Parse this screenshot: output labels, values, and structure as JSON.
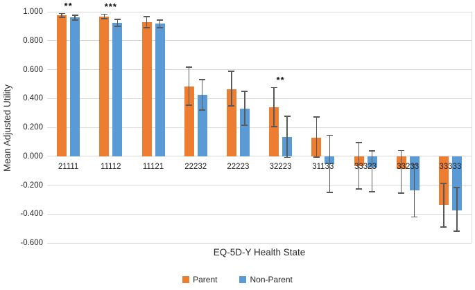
{
  "chart_data": {
    "type": "bar",
    "title": "",
    "xlabel": "EQ-5D-Y Health State",
    "ylabel": "Mean Adjusted Utility",
    "categories": [
      "21111",
      "11112",
      "11121",
      "22232",
      "22223",
      "32223",
      "31133",
      "33323",
      "33233",
      "33333"
    ],
    "series": [
      {
        "name": "Parent",
        "color": "#ED7D31",
        "values": [
          0.975,
          0.967,
          0.93,
          0.485,
          0.465,
          0.34,
          0.13,
          -0.068,
          -0.087,
          -0.335
        ],
        "ci_low": [
          0.963,
          0.951,
          0.889,
          0.355,
          0.349,
          0.205,
          -0.005,
          -0.226,
          -0.255,
          -0.49
        ],
        "ci_high": [
          0.988,
          0.983,
          0.966,
          0.615,
          0.587,
          0.475,
          0.27,
          0.094,
          0.04,
          -0.187
        ]
      },
      {
        "name": "Non-Parent",
        "color": "#5B9BD5",
        "values": [
          0.96,
          0.924,
          0.918,
          0.425,
          0.33,
          0.135,
          -0.055,
          -0.079,
          -0.235,
          -0.375
        ],
        "ci_low": [
          0.944,
          0.898,
          0.89,
          0.32,
          0.213,
          -0.008,
          -0.252,
          -0.244,
          -0.42,
          -0.52
        ],
        "ci_high": [
          0.976,
          0.946,
          0.944,
          0.53,
          0.451,
          0.277,
          0.145,
          0.038,
          -0.056,
          -0.216
        ]
      }
    ],
    "significance": [
      {
        "category": "21111",
        "label": "**"
      },
      {
        "category": "11112",
        "label": "***"
      },
      {
        "category": "32223",
        "label": "**"
      }
    ],
    "y_ticks": [
      1.0,
      0.8,
      0.6,
      0.4,
      0.2,
      0.0,
      -0.2,
      -0.4,
      -0.6
    ],
    "y_tick_labels": [
      "1.000",
      "0.800",
      "0.600",
      "0.400",
      "0.200",
      "0.000",
      "-0.200",
      "-0.400",
      "-0.600"
    ],
    "ylim": [
      -0.6,
      1.0
    ],
    "grid": true,
    "legend_position": "bottom",
    "error_bar_color": "#595959",
    "gridline_color": "#D9D9D9",
    "text_color": "#262626"
  }
}
